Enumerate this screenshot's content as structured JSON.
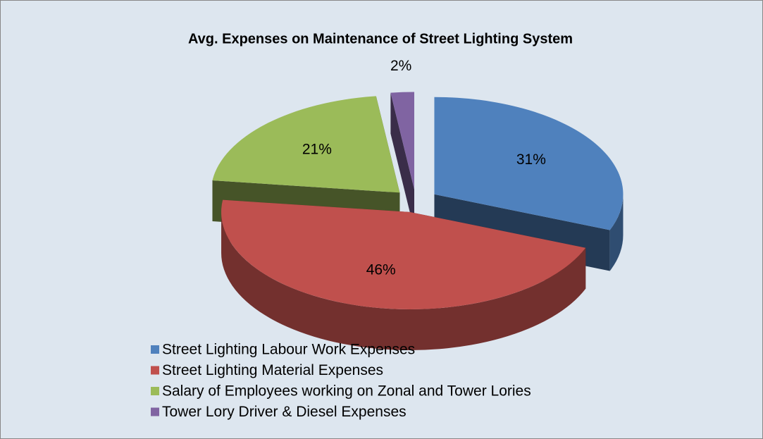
{
  "chart_data": {
    "type": "pie3d",
    "title": "Avg. Expenses on Maintenance of Street Lighting System",
    "categories": [
      "Street Lighting Labour Work Expenses",
      "Street Lighting Material Expenses",
      "Salary of Employees working on Zonal and Tower Lories",
      "Tower Lory Driver & Diesel Expenses"
    ],
    "values": [
      31,
      46,
      21,
      2
    ],
    "value_labels": [
      "31%",
      "46%",
      "21%",
      "2%"
    ],
    "colors": [
      "#4f81bd",
      "#c0504d",
      "#9bbb59",
      "#8064a2"
    ],
    "legend": "bottom-left"
  }
}
